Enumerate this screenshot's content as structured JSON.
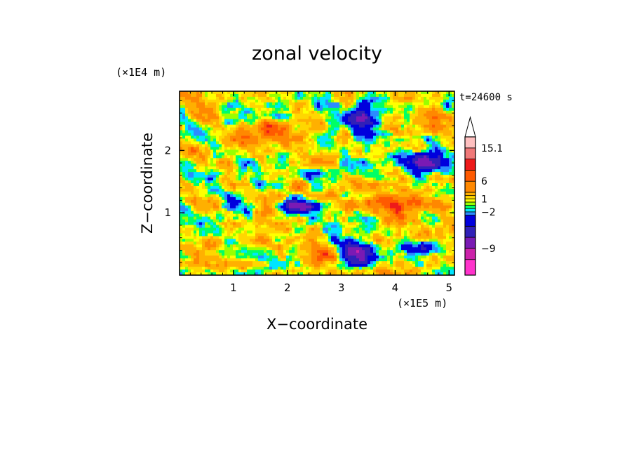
{
  "chart_data": {
    "type": "heatmap",
    "title": "zonal velocity",
    "xlabel": "X−coordinate",
    "ylabel": "Z−coordinate",
    "x_scale_label": "(×1E5 m)",
    "y_scale_label": "(×1E4 m)",
    "time_label": "t=24600 s",
    "xlim": [
      0,
      5.1
    ],
    "ylim": [
      0,
      2.95
    ],
    "x_ticks": [
      {
        "value": 1,
        "label": "1"
      },
      {
        "value": 2,
        "label": "2"
      },
      {
        "value": 3,
        "label": "3"
      },
      {
        "value": 4,
        "label": "4"
      },
      {
        "value": 5,
        "label": "5"
      }
    ],
    "y_ticks": [
      {
        "value": 1,
        "label": "1"
      },
      {
        "value": 2,
        "label": "2"
      }
    ],
    "colorbar": {
      "labels": [
        {
          "value": 15.1,
          "label": "15.1"
        },
        {
          "value": 6,
          "label": "6"
        },
        {
          "value": 1,
          "label": "1"
        },
        {
          "value": -2,
          "label": "−2"
        },
        {
          "value": -9,
          "label": "−9"
        }
      ],
      "levels": [
        {
          "color": "#ff33cc",
          "weight": 2.4
        },
        {
          "color": "#cc22aa",
          "weight": 1.7
        },
        {
          "color": "#7a1ab4",
          "weight": 1.7
        },
        {
          "color": "#3020b8",
          "weight": 1.7
        },
        {
          "color": "#0000dd",
          "weight": 1.7
        },
        {
          "color": "#2b8cff",
          "weight": 0.5
        },
        {
          "color": "#00e5ff",
          "weight": 0.5
        },
        {
          "color": "#00ff66",
          "weight": 0.5
        },
        {
          "color": "#99ff00",
          "weight": 0.5
        },
        {
          "color": "#ffff00",
          "weight": 0.5
        },
        {
          "color": "#ffd700",
          "weight": 0.5
        },
        {
          "color": "#ffb000",
          "weight": 0.5
        },
        {
          "color": "#ff8800",
          "weight": 1.7
        },
        {
          "color": "#ff5a00",
          "weight": 1.7
        },
        {
          "color": "#ee1a1a",
          "weight": 1.7
        },
        {
          "color": "#f07878",
          "weight": 1.7
        },
        {
          "color": "#ffc0c0",
          "weight": 1.7
        }
      ],
      "extend_top_color": "#ffffff"
    },
    "field_features": [
      {
        "kind": "jet",
        "x": 2.3,
        "z": 1.1,
        "sx": 0.45,
        "sz": 0.1,
        "value": -9
      },
      {
        "kind": "jet",
        "x": 3.9,
        "z": 1.15,
        "sx": 0.9,
        "sz": 0.14,
        "value": 4.5
      },
      {
        "kind": "jet",
        "x": 2.8,
        "z": 0.3,
        "sx": 0.25,
        "sz": 0.15,
        "value": 5
      },
      {
        "kind": "jet",
        "x": 3.3,
        "z": 0.35,
        "sx": 0.35,
        "sz": 0.18,
        "value": -8
      },
      {
        "kind": "jet",
        "x": 4.5,
        "z": 0.45,
        "sx": 0.35,
        "sz": 0.12,
        "value": -6
      },
      {
        "kind": "jet",
        "x": 4.6,
        "z": 1.8,
        "sx": 0.4,
        "sz": 0.16,
        "value": -8
      },
      {
        "kind": "jet",
        "x": 3.4,
        "z": 2.5,
        "sx": 0.25,
        "sz": 0.3,
        "value": -7
      },
      {
        "kind": "jet",
        "x": 1.2,
        "z": 0.8,
        "sx": 0.8,
        "sz": 0.12,
        "value": 1.5
      },
      {
        "kind": "jet",
        "x": 0.3,
        "z": 1.5,
        "sx": 0.35,
        "sz": 0.18,
        "value": -3
      },
      {
        "kind": "jet",
        "x": 1.6,
        "z": 2.2,
        "sx": 0.9,
        "sz": 0.2,
        "value": 3
      }
    ]
  }
}
